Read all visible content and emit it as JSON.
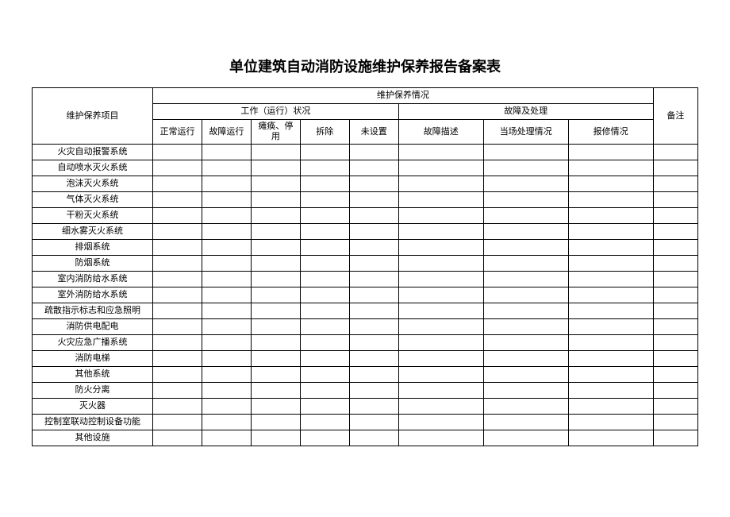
{
  "title": "单位建筑自动消防设施维护保养报告备案表",
  "headers": {
    "item": "维护保养项目",
    "status_group": "维护保养情况",
    "operation_group": "工作（运行）状况",
    "fault_group": "故障及处理",
    "remark": "备注",
    "op_normal": "正常运行",
    "op_fault": "故障运行",
    "op_paralyzed": "瘫痪、停用",
    "op_removed": "拆除",
    "op_notset": "未设置",
    "fault_desc": "故障描述",
    "fault_onsite": "当场处理情况",
    "fault_report": "报修情况"
  },
  "rows": [
    "火灾自动报警系统",
    "自动喷水灭火系统",
    "泡沫灭火系统",
    "气体灭火系统",
    "干粉灭火系统",
    "细水雾灭火系统",
    "排烟系统",
    "防烟系统",
    "室内消防给水系统",
    "室外消防给水系统",
    "疏散指示标志和应急照明",
    "消防供电配电",
    "火灾应急广播系统",
    "消防电梯",
    "其他系统",
    "防火分离",
    "灭火器",
    "控制室联动控制设备功能",
    "其他设施"
  ],
  "colors": {
    "background": "#ffffff",
    "border": "#000000",
    "text": "#000000"
  }
}
